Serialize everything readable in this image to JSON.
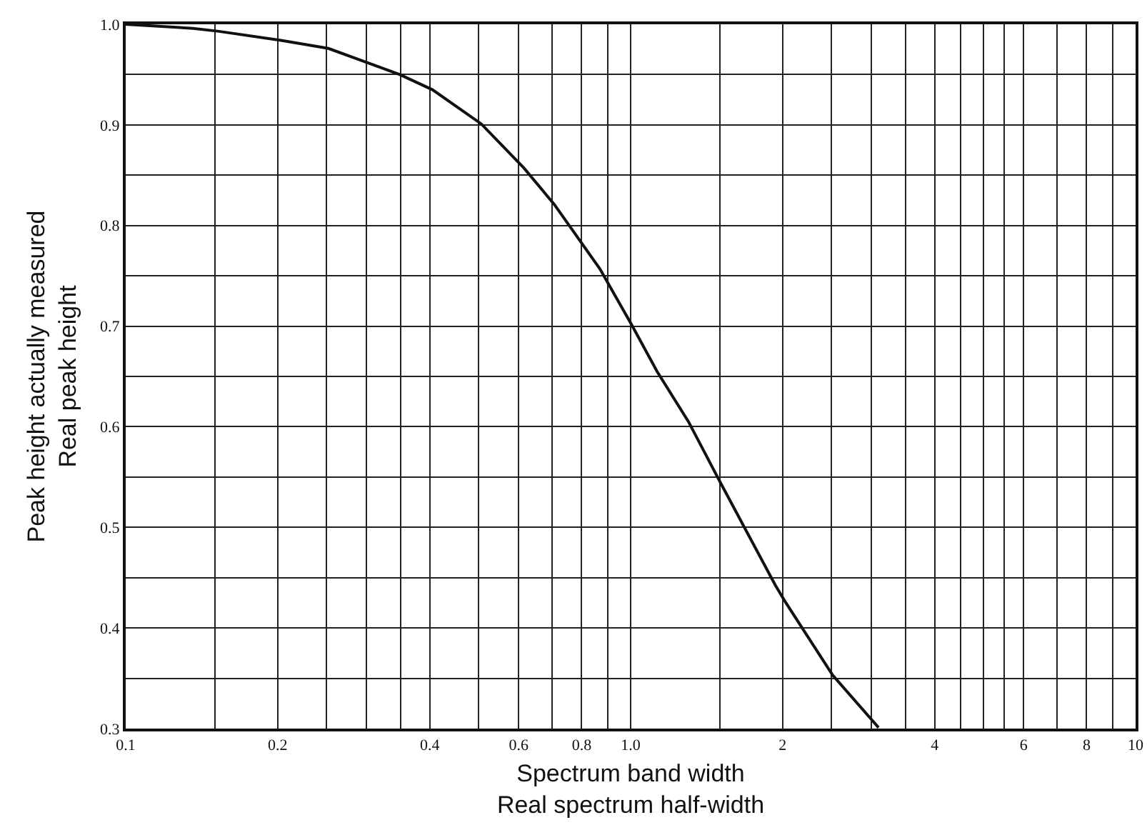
{
  "chart_data": {
    "type": "line",
    "xlabel": "Spectrum band width\nReal spectrum half-width",
    "ylabel": "Peak height actually measured\nReal peak height",
    "log": "x",
    "grid": true,
    "marker": "none",
    "line_style": "solid",
    "xlim": [
      0.1,
      10
    ],
    "ylim": [
      0.3,
      1.0
    ],
    "xticks": [
      0.1,
      {
        "value": 0.15,
        "label": null
      },
      0.2,
      {
        "value": 0.25,
        "label": null
      },
      {
        "value": 0.3,
        "label": null
      },
      {
        "value": 0.35,
        "label": null
      },
      0.4,
      {
        "value": 0.5,
        "label": null
      },
      0.6,
      {
        "value": 0.7,
        "label": null
      },
      0.8,
      {
        "value": 0.9,
        "label": null
      },
      {
        "value": 1,
        "label": "1.0"
      },
      {
        "value": 1.5,
        "label": null
      },
      2,
      {
        "value": 2.5,
        "label": null
      },
      {
        "value": 3,
        "label": null
      },
      {
        "value": 3.5,
        "label": null
      },
      4,
      {
        "value": 4.5,
        "label": null
      },
      {
        "value": 5,
        "label": null
      },
      {
        "value": 5.5,
        "label": null
      },
      6,
      {
        "value": 7,
        "label": null
      },
      8,
      {
        "value": 9,
        "label": null
      },
      10
    ],
    "yticks": [
      0.3,
      {
        "value": 0.35,
        "label": null
      },
      0.4,
      {
        "value": 0.45,
        "label": null
      },
      0.5,
      {
        "value": 0.55,
        "label": null
      },
      0.6,
      {
        "value": 0.65,
        "label": null
      },
      0.7,
      {
        "value": 0.75,
        "label": null
      },
      0.8,
      {
        "value": 0.85,
        "label": null
      },
      0.9,
      {
        "value": 0.95,
        "label": null
      },
      {
        "value": 1.0,
        "label": "1.0"
      }
    ],
    "x": [
      0.1,
      0.136,
      0.153,
      0.203,
      0.252,
      0.349,
      0.405,
      0.506,
      0.615,
      0.706,
      0.869,
      1.003,
      1.128,
      1.302,
      1.493,
      1.937,
      2.03,
      2.513,
      3.097
    ],
    "series": [
      {
        "color": "#111111",
        "values": [
          1.0,
          0.996,
          0.993,
          0.984,
          0.976,
          0.95,
          0.935,
          0.901,
          0.857,
          0.821,
          0.757,
          0.702,
          0.655,
          0.605,
          0.548,
          0.442,
          0.425,
          0.353,
          0.301
        ]
      }
    ]
  }
}
